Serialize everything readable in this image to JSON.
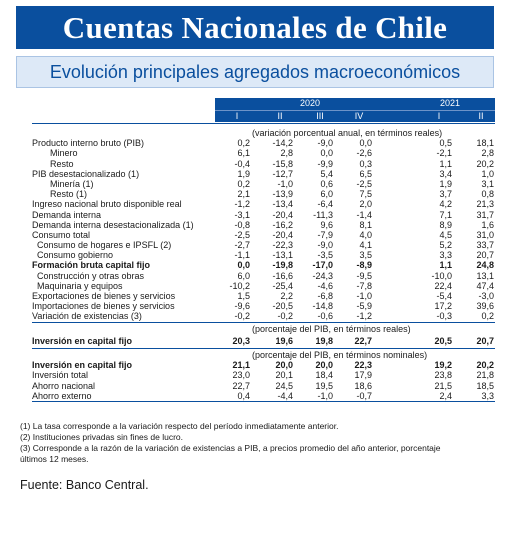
{
  "title": "Cuentas Nacionales de Chile",
  "subtitle": "Evolución principales agregados macroeconómicos",
  "years": [
    "2020",
    "2021"
  ],
  "quarters": [
    "I",
    "II",
    "III",
    "IV",
    "I",
    "II"
  ],
  "notes": {
    "var": "(variación porcentual anual, en términos reales)",
    "pib": "(porcentaje del PIB, en términos reales)",
    "pib_nom": "(porcentaje del PIB, en términos nominales)"
  },
  "rows": [
    {
      "label": "Producto interno bruto (PIB)",
      "indent": 0,
      "bold": false,
      "values": [
        "0,2",
        "-14,2",
        "-9,0",
        "0,0",
        "0,5",
        "18,1"
      ]
    },
    {
      "label": "Minero",
      "indent": 2,
      "bold": false,
      "values": [
        "6,1",
        "2,8",
        "0,0",
        "-2,6",
        "-2,1",
        "2,8"
      ]
    },
    {
      "label": "Resto",
      "indent": 2,
      "bold": false,
      "values": [
        "-0,4",
        "-15,8",
        "-9,9",
        "0,3",
        "1,1",
        "20,2"
      ]
    },
    {
      "label": "PIB desestacionalizado (1)",
      "indent": 0,
      "bold": false,
      "values": [
        "1,9",
        "-12,7",
        "5,4",
        "6,5",
        "3,4",
        "1,0"
      ]
    },
    {
      "label": "Minería (1)",
      "indent": 2,
      "bold": false,
      "values": [
        "0,2",
        "-1,0",
        "0,6",
        "-2,5",
        "1,9",
        "3,1"
      ]
    },
    {
      "label": "Resto (1)",
      "indent": 2,
      "bold": false,
      "values": [
        "2,1",
        "-13,9",
        "6,0",
        "7,5",
        "3,7",
        "0,8"
      ]
    },
    {
      "label": "Ingreso nacional bruto disponible real",
      "indent": 0,
      "bold": false,
      "values": [
        "-1,2",
        "-13,4",
        "-6,4",
        "2,0",
        "4,2",
        "21,3"
      ]
    },
    {
      "label": "Demanda interna",
      "indent": 0,
      "bold": false,
      "values": [
        "-3,1",
        "-20,4",
        "-11,3",
        "-1,4",
        "7,1",
        "31,7"
      ]
    },
    {
      "label": "Demanda interna desestacionalizada (1)",
      "indent": 0,
      "bold": false,
      "values": [
        "-0,8",
        "-16,2",
        "9,6",
        "8,1",
        "8,9",
        "1,6"
      ]
    },
    {
      "label": "Consumo total",
      "indent": 0,
      "bold": false,
      "values": [
        "-2,5",
        "-20,4",
        "-7,9",
        "4,0",
        "4,5",
        "31,0"
      ]
    },
    {
      "label": "Consumo de hogares e IPSFL (2)",
      "indent": 1,
      "bold": false,
      "values": [
        "-2,7",
        "-22,3",
        "-9,0",
        "4,1",
        "5,2",
        "33,7"
      ]
    },
    {
      "label": "Consumo gobierno",
      "indent": 1,
      "bold": false,
      "values": [
        "-1,1",
        "-13,1",
        "-3,5",
        "3,5",
        "3,3",
        "20,7"
      ]
    },
    {
      "label": "Formación bruta capital fijo",
      "indent": 0,
      "bold": true,
      "values": [
        "0,0",
        "-19,8",
        "-17,0",
        "-8,9",
        "1,1",
        "24,8"
      ]
    },
    {
      "label": "Construcción y otras obras",
      "indent": 1,
      "bold": false,
      "values": [
        "6,0",
        "-16,6",
        "-24,3",
        "-9,5",
        "-10,0",
        "13,1"
      ]
    },
    {
      "label": "Maquinaria y equipos",
      "indent": 1,
      "bold": false,
      "values": [
        "-10,2",
        "-25,4",
        "-4,6",
        "-7,8",
        "22,4",
        "47,4"
      ]
    },
    {
      "label": "Exportaciones de bienes y servicios",
      "indent": 0,
      "bold": false,
      "values": [
        "1,5",
        "2,2",
        "-6,8",
        "-1,0",
        "-5,4",
        "-3,0"
      ]
    },
    {
      "label": "Importaciones de bienes y servicios",
      "indent": 0,
      "bold": false,
      "values": [
        "-9,6",
        "-20,5",
        "-14,8",
        "-5,9",
        "17,2",
        "39,6"
      ]
    },
    {
      "label": "Variación de existencias (3)",
      "indent": 0,
      "bold": false,
      "values": [
        "-0,2",
        "-0,2",
        "-0,6",
        "-1,2",
        "-0,3",
        "0,2"
      ]
    },
    {
      "label": "Inversión en capital fijo",
      "indent": 0,
      "bold": true,
      "values": [
        "20,3",
        "19,6",
        "19,8",
        "22,7",
        "20,5",
        "20,7"
      ]
    },
    {
      "label": "Inversión en capital fijo",
      "indent": 0,
      "bold": true,
      "values": [
        "21,1",
        "20,0",
        "20,0",
        "22,3",
        "19,2",
        "20,2"
      ]
    },
    {
      "label": "Inversión total",
      "indent": 0,
      "bold": false,
      "values": [
        "23,0",
        "20,1",
        "18,4",
        "17,9",
        "23,8",
        "21,8"
      ]
    },
    {
      "label": "Ahorro nacional",
      "indent": 0,
      "bold": false,
      "values": [
        "22,7",
        "24,5",
        "19,5",
        "18,6",
        "21,5",
        "18,5"
      ]
    },
    {
      "label": "Ahorro externo",
      "indent": 0,
      "bold": false,
      "values": [
        "0,4",
        "-4,4",
        "-1,0",
        "-0,7",
        "2,4",
        "3,3"
      ]
    }
  ],
  "footnotes": [
    "(1) La tasa corresponde a la variación respecto del período inmediatamente anterior.",
    "(2) Instituciones privadas sin fines de lucro.",
    "(3) Corresponde a la razón de la variación de existencias a PIB, a precios promedio del año anterior, porcentaje",
    "últimos 12 meses."
  ],
  "source": "Fuente: Banco Central."
}
